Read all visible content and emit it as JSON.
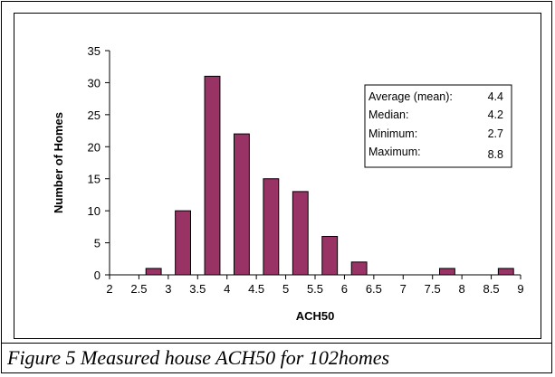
{
  "caption": "Figure 5 Measured house ACH50 for 102homes",
  "colors": {
    "bar": "#993366",
    "bar_stroke": "#000000",
    "axis": "#000000"
  },
  "chart_data": {
    "type": "bar",
    "xlabel": "ACH50",
    "ylabel": "Number of Homes",
    "xlim": [
      2,
      9
    ],
    "ylim": [
      0,
      35
    ],
    "x_ticks": [
      "2",
      "2.5",
      "3",
      "3.5",
      "4",
      "4.5",
      "5",
      "5.5",
      "6",
      "6.5",
      "7",
      "7.5",
      "8",
      "8.5",
      "9"
    ],
    "y_ticks": [
      "0",
      "5",
      "10",
      "15",
      "20",
      "25",
      "30",
      "35"
    ],
    "bins": [
      {
        "x": 2.75,
        "value": 1
      },
      {
        "x": 3.25,
        "value": 10
      },
      {
        "x": 3.75,
        "value": 31
      },
      {
        "x": 4.25,
        "value": 22
      },
      {
        "x": 4.75,
        "value": 15
      },
      {
        "x": 5.25,
        "value": 13
      },
      {
        "x": 5.75,
        "value": 6
      },
      {
        "x": 6.25,
        "value": 2
      },
      {
        "x": 7.75,
        "value": 1
      },
      {
        "x": 8.75,
        "value": 1
      }
    ],
    "grid": false,
    "stats": [
      {
        "label": "Average (mean):",
        "value": "4.4"
      },
      {
        "label": "Median:",
        "value": "4.2"
      },
      {
        "label": "Minimum:",
        "value": "2.7"
      },
      {
        "label": "Maximum:",
        "value": "8.8"
      }
    ]
  }
}
